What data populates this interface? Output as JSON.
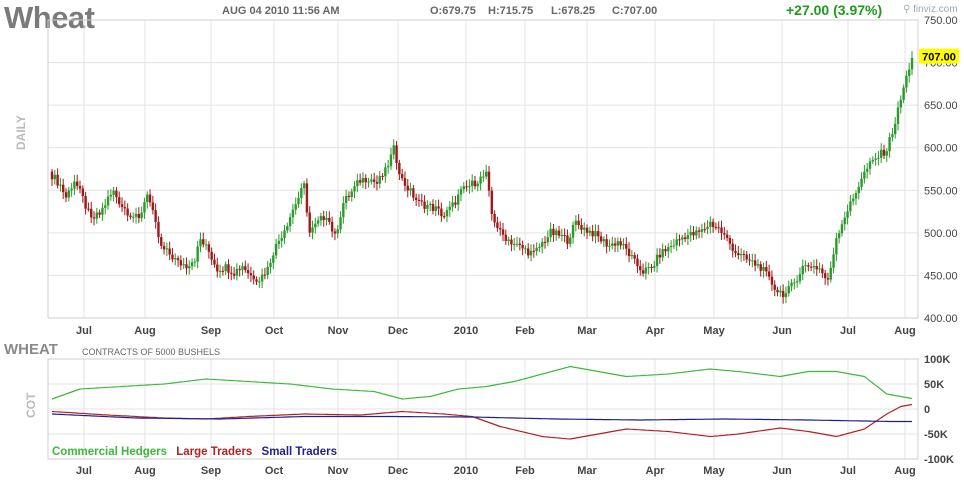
{
  "header": {
    "title": "Wheat",
    "datetime": "AUG 04 2010 11:56 AM",
    "open": "O:679.75",
    "high": "H:715.75",
    "low": "L:678.25",
    "close": "C:707.00",
    "change": "+27.00 (3.97%)",
    "brand": "finviz.com",
    "brand_icon": "magnifier-icon"
  },
  "colors": {
    "up": "#2a9a2a",
    "down": "#a01818",
    "grid": "#e3e3e3",
    "axis_text": "#444444",
    "last_price_bg": "#ffff00",
    "commercial": "#3db83d",
    "large": "#b22222",
    "small": "#1f1f8f"
  },
  "chart_data": [
    {
      "type": "candlestick",
      "ylabel": "DAILY",
      "ylim": [
        400,
        750
      ],
      "yticks": [
        "750.00",
        "700.00",
        "650.00",
        "600.00",
        "550.00",
        "500.00",
        "450.00",
        "400.00"
      ],
      "xticks": [
        "Jul",
        "Aug",
        "Sep",
        "Oct",
        "Nov",
        "Dec",
        "2010",
        "Feb",
        "Mar",
        "Apr",
        "May",
        "Jun",
        "Jul",
        "Aug"
      ],
      "last_price": "707.00",
      "grid": true,
      "close_path": [
        [
          0,
          568
        ],
        [
          3,
          556
        ],
        [
          5,
          542
        ],
        [
          8,
          562
        ],
        [
          11,
          540
        ],
        [
          14,
          515
        ],
        [
          17,
          522
        ],
        [
          20,
          540
        ],
        [
          22,
          548
        ],
        [
          25,
          532
        ],
        [
          28,
          522
        ],
        [
          31,
          515
        ],
        [
          34,
          548
        ],
        [
          36,
          522
        ],
        [
          39,
          482
        ],
        [
          42,
          475
        ],
        [
          45,
          465
        ],
        [
          48,
          462
        ],
        [
          51,
          470
        ],
        [
          53,
          492
        ],
        [
          56,
          478
        ],
        [
          59,
          458
        ],
        [
          62,
          460
        ],
        [
          65,
          454
        ],
        [
          68,
          462
        ],
        [
          71,
          450
        ],
        [
          74,
          446
        ],
        [
          77,
          458
        ],
        [
          79,
          478
        ],
        [
          82,
          498
        ],
        [
          84,
          512
        ],
        [
          87,
          535
        ],
        [
          90,
          555
        ],
        [
          92,
          500
        ],
        [
          95,
          512
        ],
        [
          98,
          522
        ],
        [
          101,
          495
        ],
        [
          104,
          535
        ],
        [
          107,
          548
        ],
        [
          110,
          562
        ],
        [
          113,
          565
        ],
        [
          116,
          558
        ],
        [
          119,
          572
        ],
        [
          122,
          598
        ],
        [
          125,
          562
        ],
        [
          128,
          548
        ],
        [
          131,
          535
        ],
        [
          134,
          532
        ],
        [
          137,
          528
        ],
        [
          140,
          520
        ],
        [
          143,
          532
        ],
        [
          146,
          548
        ],
        [
          149,
          555
        ],
        [
          152,
          562
        ],
        [
          155,
          568
        ],
        [
          157,
          522
        ],
        [
          160,
          500
        ],
        [
          163,
          492
        ],
        [
          166,
          485
        ],
        [
          169,
          480
        ],
        [
          172,
          475
        ],
        [
          175,
          488
        ],
        [
          178,
          500
        ],
        [
          181,
          497
        ],
        [
          184,
          492
        ],
        [
          187,
          512
        ],
        [
          190,
          505
        ],
        [
          193,
          500
        ],
        [
          196,
          492
        ],
        [
          199,
          485
        ],
        [
          202,
          490
        ],
        [
          205,
          480
        ],
        [
          208,
          465
        ],
        [
          211,
          455
        ],
        [
          214,
          458
        ],
        [
          217,
          475
        ],
        [
          220,
          482
        ],
        [
          223,
          490
        ],
        [
          226,
          497
        ],
        [
          229,
          498
        ],
        [
          232,
          502
        ],
        [
          235,
          512
        ],
        [
          238,
          505
        ],
        [
          241,
          492
        ],
        [
          244,
          478
        ],
        [
          247,
          470
        ],
        [
          250,
          465
        ],
        [
          253,
          460
        ],
        [
          256,
          445
        ],
        [
          259,
          432
        ],
        [
          262,
          428
        ],
        [
          265,
          442
        ],
        [
          268,
          460
        ],
        [
          271,
          462
        ],
        [
          274,
          458
        ],
        [
          277,
          442
        ],
        [
          280,
          495
        ],
        [
          283,
          520
        ],
        [
          286,
          540
        ],
        [
          289,
          565
        ],
        [
          292,
          580
        ],
        [
          295,
          590
        ],
        [
          298,
          598
        ],
        [
          301,
          630
        ],
        [
          304,
          670
        ],
        [
          307,
          707
        ]
      ]
    },
    {
      "type": "line",
      "title": "WHEAT",
      "subtitle": "CONTRACTS OF 5000 BUSHELS",
      "ylabel": "COT",
      "ylim": [
        -100,
        100
      ],
      "yticks": [
        "100K",
        "50K",
        "0",
        "-50K",
        "-100K"
      ],
      "xticks": [
        "Jul",
        "Aug",
        "Sep",
        "Oct",
        "Nov",
        "Dec",
        "2010",
        "Feb",
        "Mar",
        "Apr",
        "May",
        "Jun",
        "Jul",
        "Aug"
      ],
      "series": [
        {
          "name": "Commercial Hedgers",
          "points": [
            [
              0,
              20
            ],
            [
              10,
              40
            ],
            [
              25,
              45
            ],
            [
              40,
              50
            ],
            [
              55,
              60
            ],
            [
              70,
              55
            ],
            [
              85,
              50
            ],
            [
              100,
              40
            ],
            [
              115,
              35
            ],
            [
              125,
              20
            ],
            [
              135,
              25
            ],
            [
              145,
              40
            ],
            [
              155,
              45
            ],
            [
              165,
              55
            ],
            [
              175,
              70
            ],
            [
              185,
              85
            ],
            [
              195,
              75
            ],
            [
              205,
              65
            ],
            [
              220,
              70
            ],
            [
              235,
              80
            ],
            [
              245,
              75
            ],
            [
              260,
              65
            ],
            [
              270,
              75
            ],
            [
              280,
              75
            ],
            [
              290,
              65
            ],
            [
              298,
              30
            ],
            [
              308,
              20
            ]
          ]
        },
        {
          "name": "Large Traders",
          "points": [
            [
              0,
              -5
            ],
            [
              20,
              -12
            ],
            [
              40,
              -18
            ],
            [
              55,
              -20
            ],
            [
              70,
              -15
            ],
            [
              90,
              -10
            ],
            [
              110,
              -12
            ],
            [
              125,
              -5
            ],
            [
              140,
              -10
            ],
            [
              150,
              -15
            ],
            [
              160,
              -35
            ],
            [
              175,
              -55
            ],
            [
              185,
              -60
            ],
            [
              195,
              -50
            ],
            [
              205,
              -40
            ],
            [
              220,
              -45
            ],
            [
              235,
              -55
            ],
            [
              245,
              -50
            ],
            [
              260,
              -38
            ],
            [
              270,
              -45
            ],
            [
              280,
              -55
            ],
            [
              290,
              -40
            ],
            [
              298,
              -10
            ],
            [
              303,
              5
            ],
            [
              308,
              10
            ]
          ]
        },
        {
          "name": "Small Traders",
          "points": [
            [
              0,
              -10
            ],
            [
              30,
              -18
            ],
            [
              60,
              -20
            ],
            [
              90,
              -15
            ],
            [
              120,
              -15
            ],
            [
              150,
              -16
            ],
            [
              180,
              -20
            ],
            [
              210,
              -22
            ],
            [
              240,
              -20
            ],
            [
              270,
              -22
            ],
            [
              300,
              -25
            ],
            [
              308,
              -25
            ]
          ]
        }
      ]
    }
  ]
}
